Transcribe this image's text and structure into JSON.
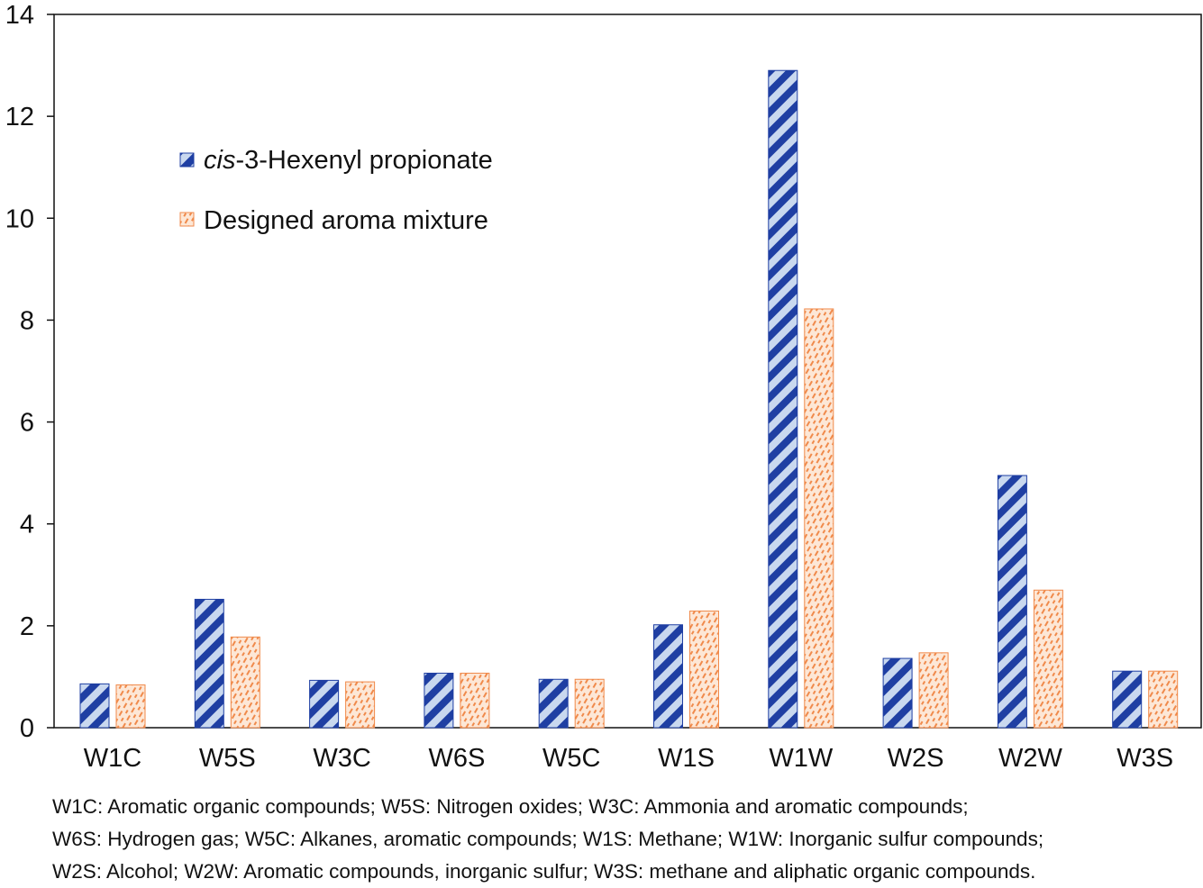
{
  "chart_data": {
    "type": "bar",
    "title": "",
    "xlabel": "",
    "ylabel": "",
    "ylim": [
      0,
      14
    ],
    "yticks": [
      "0",
      "2",
      "4",
      "6",
      "8",
      "10",
      "12",
      "14"
    ],
    "grid": false,
    "legend_position": "upper-left",
    "categories": [
      "W1C",
      "W5S",
      "W3C",
      "W6S",
      "W5C",
      "W1S",
      "W1W",
      "W2S",
      "W2W",
      "W3S"
    ],
    "series": [
      {
        "name_prefix": "cis",
        "name_rest": "-3-Hexenyl propionate",
        "color": "#1f3fa3",
        "fill_light": "#c9d8ef",
        "pattern": "diagonal-stripes",
        "values": [
          0.86,
          2.52,
          0.93,
          1.07,
          0.95,
          2.02,
          12.9,
          1.36,
          4.95,
          1.11
        ]
      },
      {
        "name": "Designed aroma mixture",
        "color": "#f08a4b",
        "fill_light": "#fde7d6",
        "pattern": "dashed-hatch",
        "values": [
          0.84,
          1.78,
          0.9,
          1.07,
          0.95,
          2.29,
          8.22,
          1.47,
          2.7,
          1.11
        ]
      }
    ]
  },
  "caption": {
    "line1": "W1C: Aromatic organic compounds; W5S: Nitrogen oxides; W3C: Ammonia and aromatic compounds;",
    "line2": "W6S: Hydrogen gas; W5C: Alkanes, aromatic compounds; W1S: Methane; W1W: Inorganic sulfur compounds;",
    "line3": "W2S: Alcohol; W2W: Aromatic compounds, inorganic sulfur; W3S: methane and aliphatic organic compounds."
  }
}
